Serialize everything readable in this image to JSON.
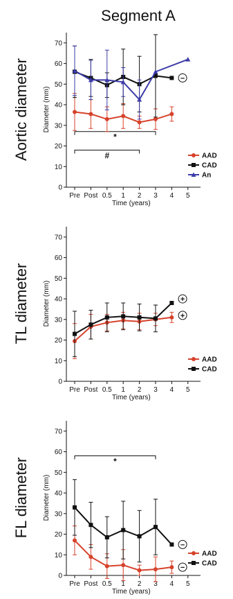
{
  "title": "Segment A",
  "x_categories": [
    "Pre",
    "Post",
    "0.5",
    "1",
    "2",
    "3",
    "4",
    "5"
  ],
  "x_axis_label": "Time (years)",
  "y_axis_label": "Diameter (mm)",
  "colors": {
    "AAD": "#d6422b",
    "CAD": "#111111",
    "An": "#3b3ba8"
  },
  "chart_data": [
    {
      "type": "line",
      "row_label": "Aortic diameter",
      "ylim": [
        0,
        75
      ],
      "yticks": [
        0,
        10,
        20,
        30,
        40,
        50,
        60,
        70
      ],
      "series": [
        {
          "name": "AAD",
          "x": [
            0,
            1,
            2,
            3,
            4,
            5,
            6
          ],
          "y": [
            36.5,
            35.5,
            33,
            34.5,
            31.5,
            33,
            35.5
          ],
          "err": [
            9,
            7,
            6,
            6,
            3,
            5,
            3.5
          ]
        },
        {
          "name": "CAD",
          "x": [
            0,
            1,
            2,
            3,
            4,
            5,
            6
          ],
          "y": [
            56,
            53,
            49.5,
            53.5,
            50,
            54,
            53
          ],
          "err": [
            12.5,
            9,
            6,
            13.5,
            13.5,
            20,
            0
          ]
        },
        {
          "name": "An",
          "x": [
            0,
            1,
            2,
            3,
            4,
            5,
            7
          ],
          "y": [
            56.5,
            52,
            52,
            51,
            42.5,
            56,
            62
          ],
          "err": [
            12,
            9.5,
            14.5,
            7,
            9.5,
            0,
            0
          ]
        }
      ],
      "brackets": [
        {
          "from": 0,
          "to": 5,
          "y": 27,
          "label": "*"
        },
        {
          "from": 0,
          "to": 4,
          "y": 18,
          "label": "#"
        }
      ],
      "symbols": [
        {
          "x": 6.5,
          "y": 53,
          "label": "−"
        }
      ],
      "legend": [
        "AAD",
        "CAD",
        "An"
      ]
    },
    {
      "type": "line",
      "row_label": "TL diameter",
      "ylim": [
        0,
        75
      ],
      "yticks": [
        0,
        10,
        20,
        30,
        40,
        50,
        60,
        70
      ],
      "series": [
        {
          "name": "AAD",
          "x": [
            0,
            1,
            2,
            3,
            4,
            5,
            6
          ],
          "y": [
            19.5,
            26.5,
            28.5,
            29.5,
            29,
            30,
            31
          ],
          "err": [
            8.5,
            6,
            4,
            4,
            4,
            3,
            2.5
          ]
        },
        {
          "name": "CAD",
          "x": [
            0,
            1,
            2,
            3,
            4,
            5,
            6
          ],
          "y": [
            23,
            27.5,
            31,
            31.5,
            31,
            30.5,
            38
          ],
          "err": [
            11,
            7,
            7,
            6.5,
            6.5,
            6.5,
            0
          ]
        }
      ],
      "brackets": [],
      "symbols": [
        {
          "x": 6.5,
          "y": 40,
          "label": "+"
        },
        {
          "x": 6.5,
          "y": 32,
          "label": "+"
        }
      ],
      "legend": [
        "AAD",
        "CAD"
      ]
    },
    {
      "type": "line",
      "row_label": "FL diameter",
      "ylim": [
        0,
        75
      ],
      "yticks": [
        0,
        10,
        20,
        30,
        40,
        50,
        60,
        70
      ],
      "series": [
        {
          "name": "AAD",
          "x": [
            0,
            1,
            2,
            3,
            4,
            5,
            6
          ],
          "y": [
            17,
            9,
            4.5,
            5,
            2.5,
            3,
            4
          ],
          "err": [
            7,
            6,
            6,
            7.5,
            2.5,
            6,
            3
          ]
        },
        {
          "name": "CAD",
          "x": [
            0,
            1,
            2,
            3,
            4,
            5,
            6
          ],
          "y": [
            33,
            24.5,
            18.5,
            22,
            19,
            23.5,
            15
          ],
          "err": [
            13.5,
            11,
            10,
            14,
            12.5,
            13.5,
            0
          ]
        }
      ],
      "brackets": [
        {
          "from": 0,
          "to": 5,
          "y": 58,
          "label": "*"
        }
      ],
      "symbols": [
        {
          "x": 6.5,
          "y": 15,
          "label": "−"
        },
        {
          "x": 6.5,
          "y": 4,
          "label": "−"
        }
      ],
      "legend": [
        "AAD",
        "CAD"
      ]
    }
  ]
}
